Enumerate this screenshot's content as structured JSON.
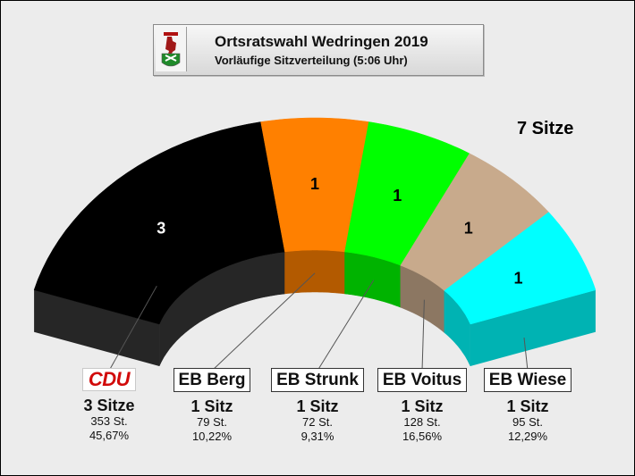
{
  "header": {
    "title": "Ortsratswahl Wedringen 2019",
    "subtitle": "Vorläufige Sitzverteilung (5:06 Uhr)"
  },
  "total_seats_label": "7 Sitze",
  "chart_data": {
    "type": "pie",
    "subtype": "semicircle seat distribution",
    "total_seats": 7,
    "series": [
      {
        "name": "CDU",
        "seats": 3,
        "seat_label": "3 Sitze",
        "votes_label": "353 St.",
        "percent_label": "45,67%",
        "votes": 353,
        "percent": 45.67,
        "color": "#000000",
        "side_color": "#262626"
      },
      {
        "name": "EB Berg",
        "seats": 1,
        "seat_label": "1 Sitz",
        "votes_label": "79 St.",
        "percent_label": "10,22%",
        "votes": 79,
        "percent": 10.22,
        "color": "#ff8000",
        "side_color": "#b35a00"
      },
      {
        "name": "EB Strunk",
        "seats": 1,
        "seat_label": "1 Sitz",
        "votes_label": "72 St.",
        "percent_label": "9,31%",
        "votes": 72,
        "percent": 9.31,
        "color": "#00ff00",
        "side_color": "#00b300"
      },
      {
        "name": "EB Voitus",
        "seats": 1,
        "seat_label": "1 Sitz",
        "votes_label": "128 St.",
        "percent_label": "16,56%",
        "votes": 128,
        "percent": 16.56,
        "color": "#c8aa8c",
        "side_color": "#8c7762"
      },
      {
        "name": "EB Wiese",
        "seats": 1,
        "seat_label": "1 Sitz",
        "votes_label": "95 St.",
        "percent_label": "12,29%",
        "votes": 95,
        "percent": 12.29,
        "color": "#00ffff",
        "side_color": "#00b3b3"
      }
    ]
  }
}
